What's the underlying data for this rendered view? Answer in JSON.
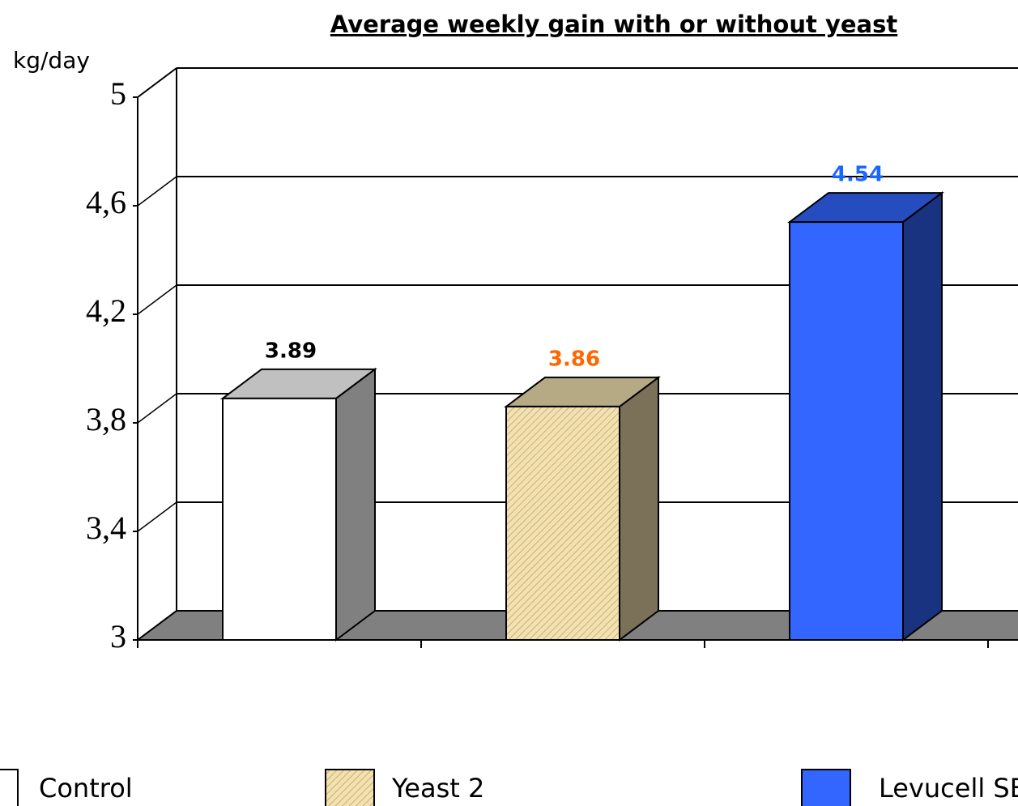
{
  "chart_data": {
    "type": "bar3d",
    "title": "Average weekly gain with or without yeast",
    "y_label": "kg/day",
    "categories": [
      "Control",
      "Yeast 2",
      "Levucell SB"
    ],
    "values": [
      3.89,
      3.86,
      4.54
    ],
    "colors": [
      "#ffffff",
      "#f3e2b0",
      "#3366ff"
    ],
    "value_label_colors": [
      "#000000",
      "#ff6600",
      "#1a66ff"
    ],
    "ylim": [
      3,
      5
    ],
    "yticks": [
      3,
      {
        "value": 3.4,
        "label": "3,4"
      },
      {
        "value": 3.8,
        "label": "3,8"
      },
      {
        "value": 4.2,
        "label": "4,2"
      },
      {
        "value": 4.6,
        "label": "4,6"
      },
      5
    ],
    "grid": true
  }
}
